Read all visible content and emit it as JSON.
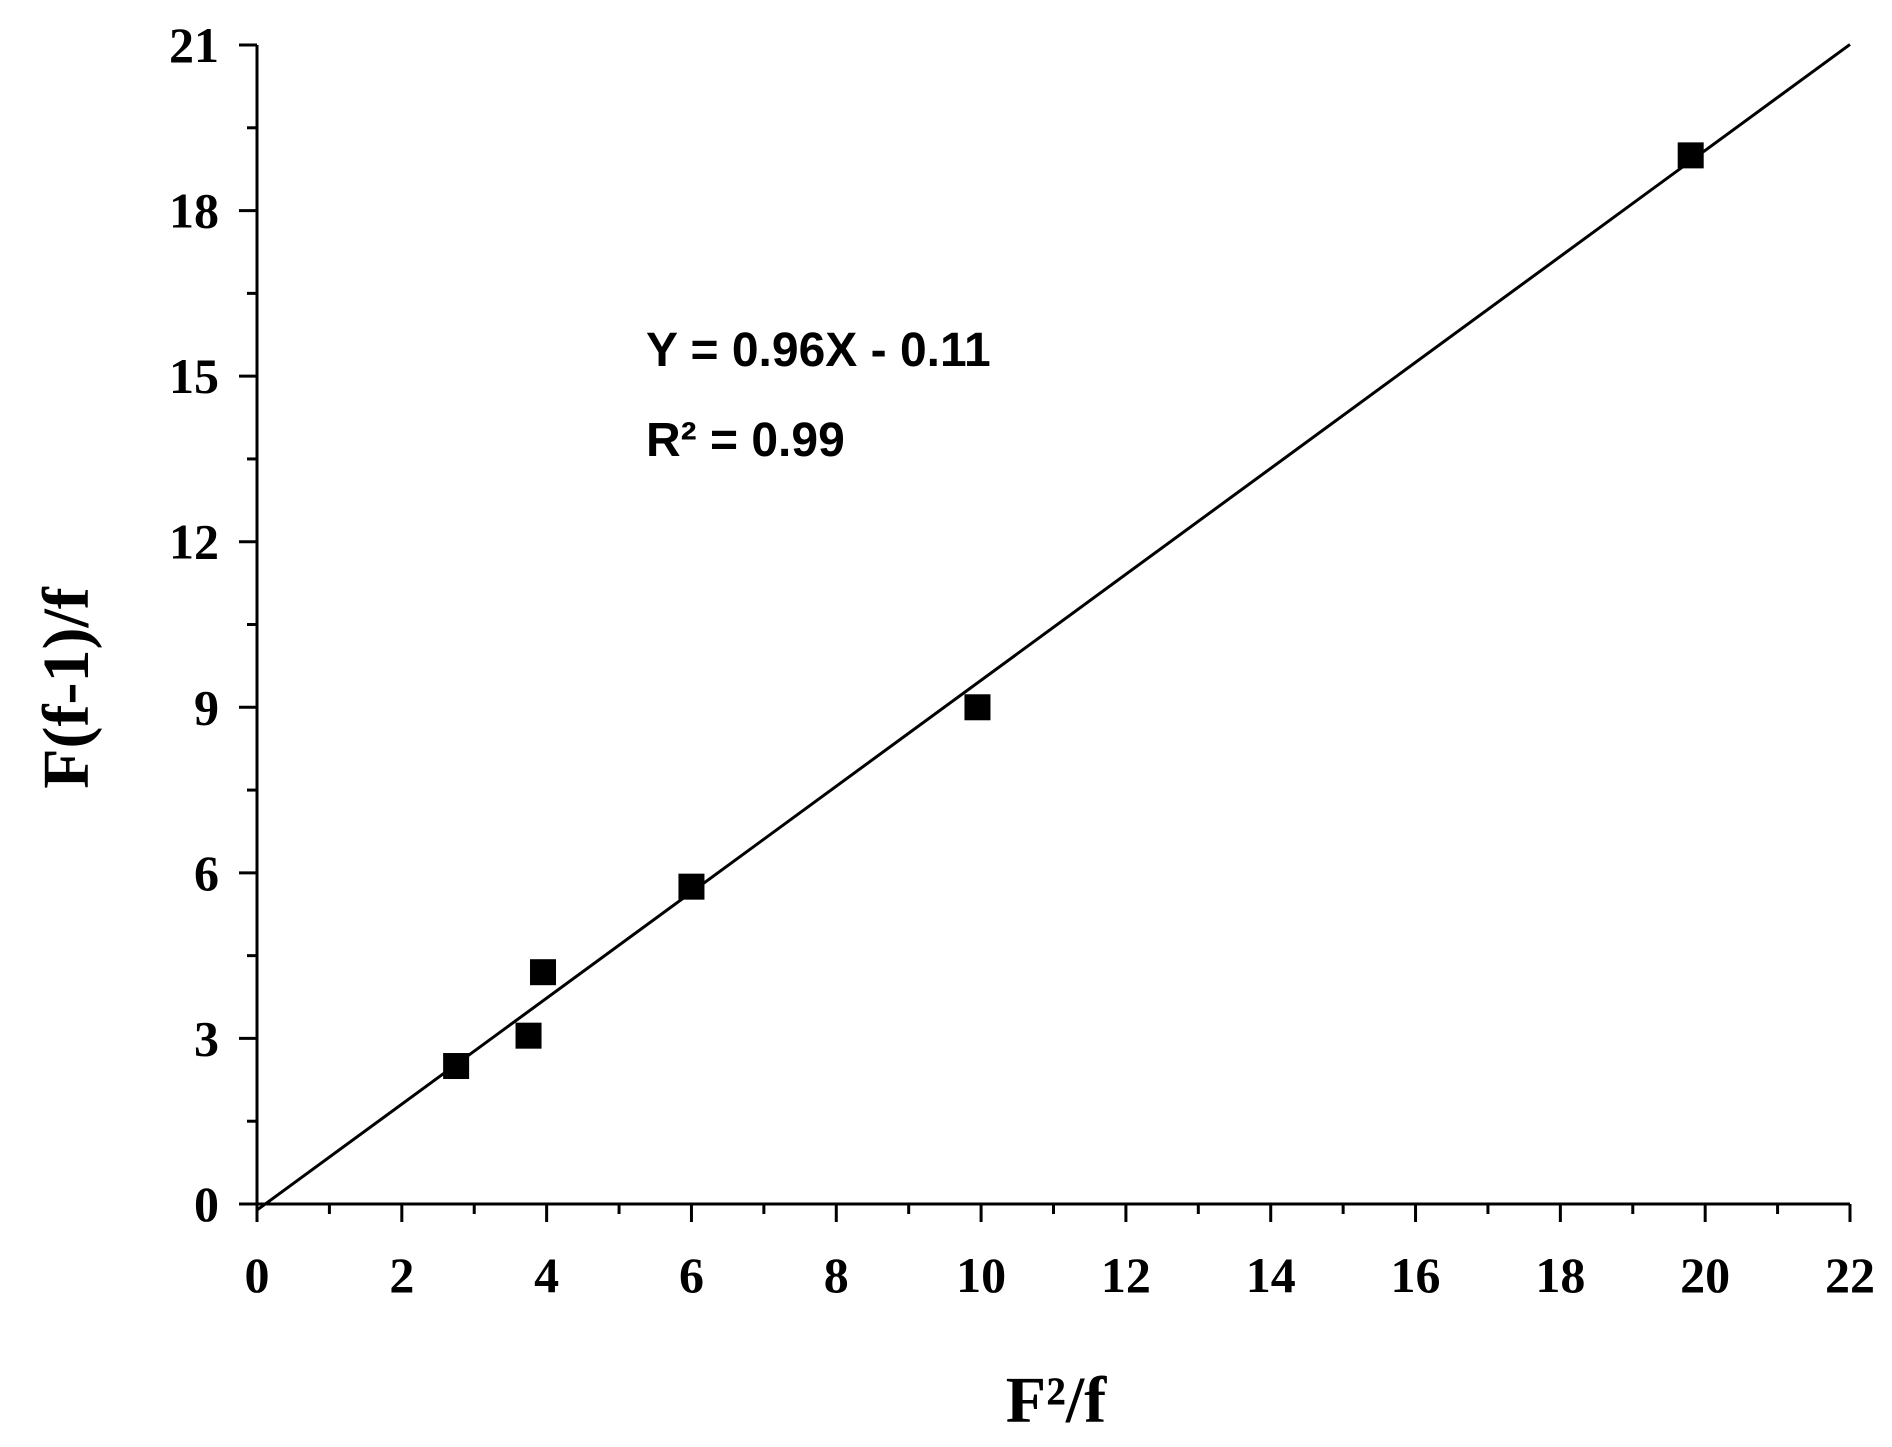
{
  "chart_data": {
    "type": "scatter",
    "x_label": "F²/f",
    "y_label": "F(f-1)/f",
    "annotations": [
      "Y = 0.96X - 0.11",
      "R² = 0.99"
    ],
    "series": [
      {
        "x": [
          2.75,
          3.75,
          3.95,
          6.0,
          9.95,
          19.8
        ],
        "values": [
          2.5,
          3.05,
          4.2,
          5.75,
          9.0,
          19.0
        ],
        "color": "#000000"
      }
    ],
    "fit": {
      "x": [
        0,
        22
      ],
      "values": [
        -0.11,
        21.01
      ],
      "color": "#000000"
    },
    "xlim": [
      0,
      22
    ],
    "ylim": [
      0,
      21
    ],
    "xticks": [
      0,
      2,
      4,
      6,
      8,
      10,
      12,
      14,
      16,
      18,
      20,
      22
    ],
    "yticks": [
      0,
      3,
      6,
      9,
      12,
      15,
      18,
      21
    ],
    "xminorticks": [
      1,
      3,
      5,
      7,
      9,
      11,
      13,
      15,
      17,
      19,
      21
    ],
    "yminorticks": [
      1.5,
      4.5,
      7.5,
      10.5,
      13.5,
      16.5,
      19.5
    ],
    "grid": false
  }
}
